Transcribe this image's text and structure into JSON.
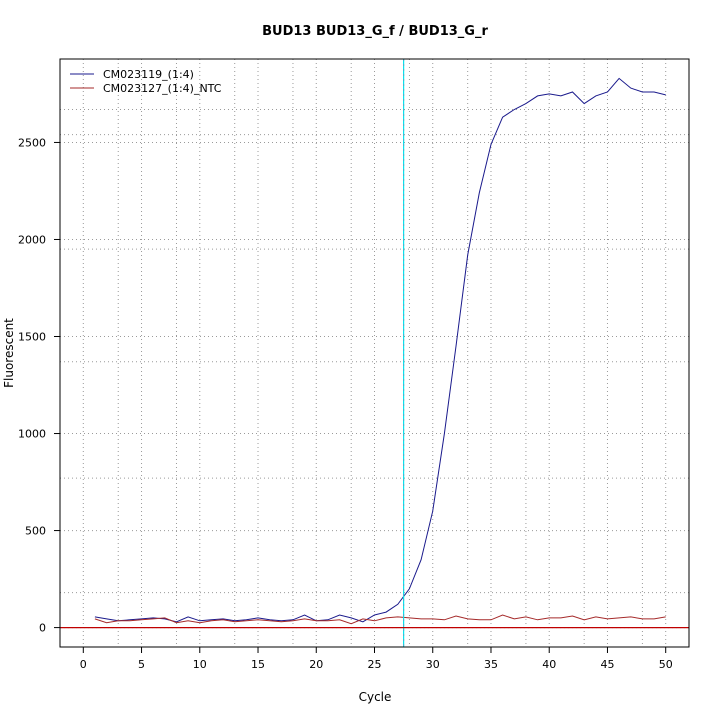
{
  "chart_data": {
    "type": "line",
    "title": "BUD13  BUD13_G_f / BUD13_G_r",
    "xlabel": "Cycle",
    "ylabel": "Fluorescent",
    "xlim": [
      -2,
      52
    ],
    "ylim": [
      -100,
      2930
    ],
    "x_ticks": [
      0,
      5,
      10,
      15,
      20,
      25,
      30,
      35,
      40,
      45,
      50
    ],
    "y_ticks": [
      0,
      500,
      1000,
      1500,
      2000,
      2500
    ],
    "x_grid": [
      0,
      3,
      5,
      8,
      10,
      13,
      15,
      18,
      20,
      23,
      25,
      28,
      30,
      33,
      35,
      38,
      40,
      43,
      45,
      48,
      50
    ],
    "y_grid": [
      0,
      180,
      500,
      770,
      1000,
      1370,
      1500,
      1950,
      2000,
      2540,
      2500,
      2670
    ],
    "grid": true,
    "legend_position": "top-left",
    "threshold": {
      "x": 27.5,
      "color": "#00e5ee"
    },
    "baseline": {
      "y": 0,
      "color": "#c00000"
    },
    "series": [
      {
        "name": "CM023119_(1:4)",
        "color": "#1a1a8c",
        "x": [
          1,
          2,
          3,
          4,
          5,
          6,
          7,
          8,
          9,
          10,
          11,
          12,
          13,
          14,
          15,
          16,
          17,
          18,
          19,
          20,
          21,
          22,
          23,
          24,
          25,
          26,
          27,
          28,
          29,
          30,
          31,
          32,
          33,
          34,
          35,
          36,
          37,
          38,
          39,
          40,
          41,
          42,
          43,
          44,
          45,
          46,
          47,
          48,
          49,
          50
        ],
        "values": [
          55,
          45,
          35,
          40,
          45,
          50,
          45,
          30,
          55,
          35,
          40,
          45,
          35,
          40,
          50,
          40,
          35,
          40,
          65,
          35,
          40,
          65,
          50,
          30,
          65,
          80,
          120,
          200,
          350,
          600,
          1000,
          1450,
          1920,
          2240,
          2490,
          2630,
          2670,
          2700,
          2740,
          2750,
          2740,
          2760,
          2700,
          2740,
          2760,
          2830,
          2780,
          2760,
          2760,
          2745
        ]
      },
      {
        "name": "CM023127_(1:4)_NTC",
        "color": "#a52a2a",
        "x": [
          1,
          2,
          3,
          4,
          5,
          6,
          7,
          8,
          9,
          10,
          11,
          12,
          13,
          14,
          15,
          16,
          17,
          18,
          19,
          20,
          21,
          22,
          23,
          24,
          25,
          26,
          27,
          28,
          29,
          30,
          31,
          32,
          33,
          34,
          35,
          36,
          37,
          38,
          39,
          40,
          41,
          42,
          43,
          44,
          45,
          46,
          47,
          48,
          49,
          50
        ],
        "values": [
          45,
          25,
          35,
          35,
          40,
          45,
          50,
          25,
          35,
          25,
          35,
          40,
          30,
          35,
          40,
          35,
          30,
          35,
          45,
          35,
          35,
          40,
          20,
          45,
          35,
          50,
          55,
          50,
          45,
          45,
          40,
          60,
          45,
          40,
          40,
          65,
          45,
          55,
          40,
          50,
          50,
          60,
          40,
          55,
          45,
          50,
          55,
          45,
          45,
          55
        ]
      }
    ]
  }
}
